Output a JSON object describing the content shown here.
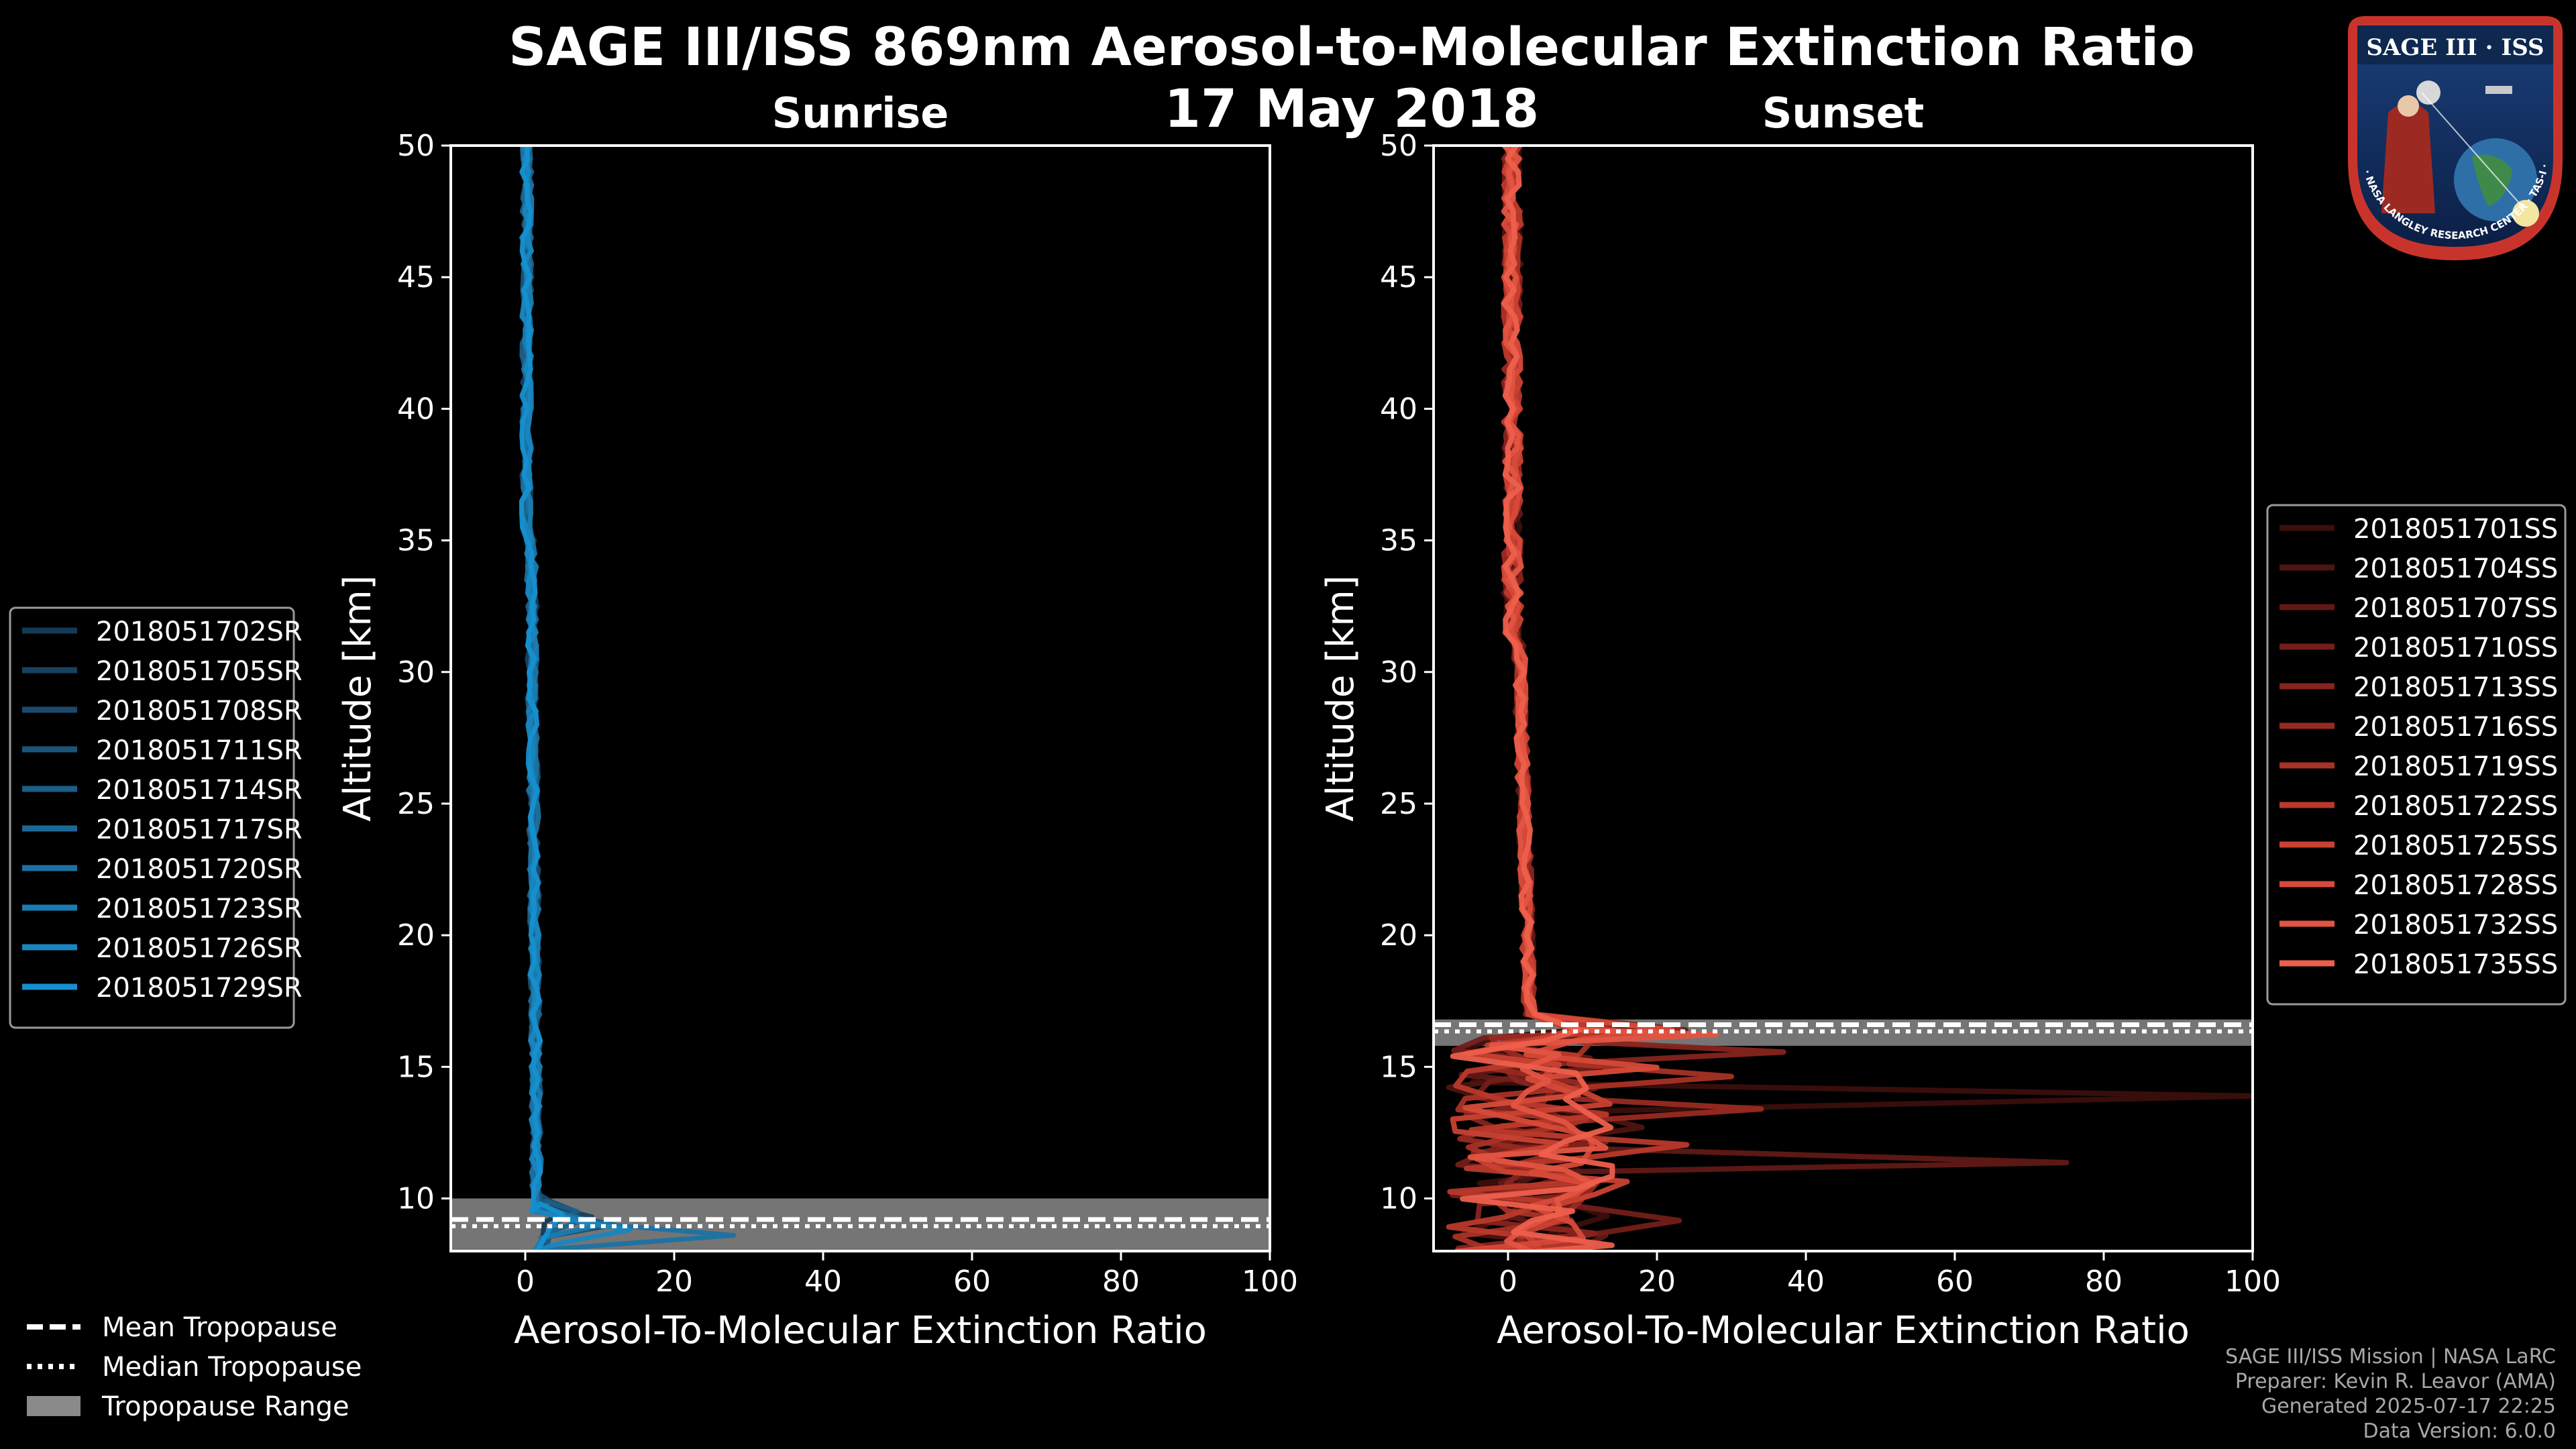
{
  "title_line1": "SAGE III/ISS 869nm Aerosol-to-Molecular Extinction Ratio",
  "title_line2": "17 May 2018",
  "logo": {
    "top_text": "SAGE III · ISS",
    "ring_text": "BALL · NASA LANGLEY RESEARCH CENTER · TAS-I · ESA"
  },
  "footer": {
    "line1": "SAGE III/ISS Mission | NASA LaRC",
    "line2": "Preparer: Kevin R. Leavor (AMA)",
    "line3": "Generated 2025-07-17 22:25",
    "line4": "Data Version: 6.0.0"
  },
  "tropopause_legend": [
    "Mean Tropopause",
    "Median Tropopause",
    "Tropopause Range"
  ],
  "chart_data": [
    {
      "type": "line",
      "title": "Sunrise",
      "xlabel": "Aerosol-To-Molecular Extinction Ratio",
      "ylabel": "Altitude [km]",
      "xlim": [
        -10,
        100
      ],
      "ylim": [
        8,
        50
      ],
      "xticks": [
        0,
        20,
        40,
        60,
        80,
        100
      ],
      "yticks": [
        10,
        15,
        20,
        25,
        30,
        35,
        40,
        45,
        50
      ],
      "legend_position": "left",
      "tropopause": {
        "mean": 9.2,
        "median": 9.2,
        "range": [
          8,
          10
        ]
      },
      "series": [
        {
          "name": "2018051702SR",
          "color": "#143a55",
          "spike_alt": 9.6,
          "spike_x": 6
        },
        {
          "name": "2018051705SR",
          "color": "#17415f",
          "spike_alt": 9.3,
          "spike_x": 9
        },
        {
          "name": "2018051708SR",
          "color": "#194a6c",
          "spike_alt": 9.8,
          "spike_x": 4
        },
        {
          "name": "2018051711SR",
          "color": "#1a5478",
          "spike_alt": 9.0,
          "spike_x": 12
        },
        {
          "name": "2018051714SR",
          "color": "#1b5e86",
          "spike_alt": 9.5,
          "spike_x": 7
        },
        {
          "name": "2018051717SR",
          "color": "#1b6894",
          "spike_alt": 9.2,
          "spike_x": 8
        },
        {
          "name": "2018051720SR",
          "color": "#1b72a2",
          "spike_alt": 8.6,
          "spike_x": 28
        },
        {
          "name": "2018051723SR",
          "color": "#1a7cb1",
          "spike_alt": 9.0,
          "spike_x": 10
        },
        {
          "name": "2018051726SR",
          "color": "#1886c0",
          "spike_alt": 8.8,
          "spike_x": 14
        },
        {
          "name": "2018051729SR",
          "color": "#1590d0",
          "spike_alt": 9.4,
          "spike_x": 5
        }
      ]
    },
    {
      "type": "line",
      "title": "Sunset",
      "xlabel": "Aerosol-To-Molecular Extinction Ratio",
      "ylabel": "Altitude [km]",
      "xlim": [
        -10,
        100
      ],
      "ylim": [
        8,
        50
      ],
      "xticks": [
        0,
        20,
        40,
        60,
        80,
        100
      ],
      "yticks": [
        10,
        15,
        20,
        25,
        30,
        35,
        40,
        45,
        50
      ],
      "legend_position": "right",
      "tropopause": {
        "mean": 16.6,
        "median": 16.6,
        "range": [
          15.8,
          16.8
        ]
      },
      "series": [
        {
          "name": "2018051701SS",
          "color": "#3a0f0c",
          "spike_alt": 13.7,
          "spike_x": 100
        },
        {
          "name": "2018051704SS",
          "color": "#4d1411",
          "spike_alt": 12.5,
          "spike_x": 18
        },
        {
          "name": "2018051707SS",
          "color": "#601915",
          "spike_alt": 11.5,
          "spike_x": 75
        },
        {
          "name": "2018051710SS",
          "color": "#731e19",
          "spike_alt": 9.0,
          "spike_x": 23
        },
        {
          "name": "2018051713SS",
          "color": "#86241d",
          "spike_alt": 15.5,
          "spike_x": 37
        },
        {
          "name": "2018051716SS",
          "color": "#982a21",
          "spike_alt": 13.2,
          "spike_x": 34
        },
        {
          "name": "2018051719SS",
          "color": "#a93125",
          "spike_alt": 14.5,
          "spike_x": 30
        },
        {
          "name": "2018051722SS",
          "color": "#b9392b",
          "spike_alt": 12.0,
          "spike_x": 24
        },
        {
          "name": "2018051725SS",
          "color": "#c94131",
          "spike_alt": 10.5,
          "spike_x": 16
        },
        {
          "name": "2018051728SS",
          "color": "#d74a39",
          "spike_alt": 15.0,
          "spike_x": 20
        },
        {
          "name": "2018051732SS",
          "color": "#e35442",
          "spike_alt": 16.2,
          "spike_x": 28
        },
        {
          "name": "2018051735SS",
          "color": "#ed5f4c",
          "spike_alt": 11.0,
          "spike_x": 14
        }
      ]
    }
  ]
}
